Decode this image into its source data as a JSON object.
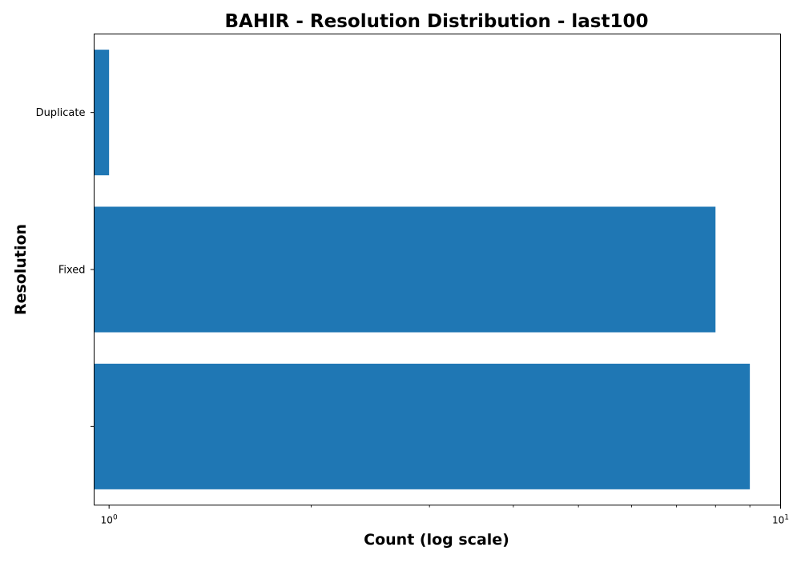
{
  "chart_data": {
    "type": "bar",
    "orientation": "horizontal",
    "title": "BAHIR - Resolution Distribution - last100",
    "xlabel": "Count (log scale)",
    "ylabel": "Resolution",
    "x_scale": "log",
    "xlim": [
      0.95,
      10
    ],
    "categories": [
      "",
      "Fixed",
      "Duplicate"
    ],
    "values": [
      9,
      8,
      1
    ],
    "x_major_ticks": [
      {
        "value": 1,
        "base": "10",
        "exponent": "0"
      },
      {
        "value": 10,
        "base": "10",
        "exponent": "1"
      }
    ],
    "x_minor_ticks": [
      2,
      3,
      4,
      5,
      6,
      7,
      8,
      9
    ],
    "bar_color": "#1f77b4",
    "grid": false,
    "legend": "none"
  }
}
